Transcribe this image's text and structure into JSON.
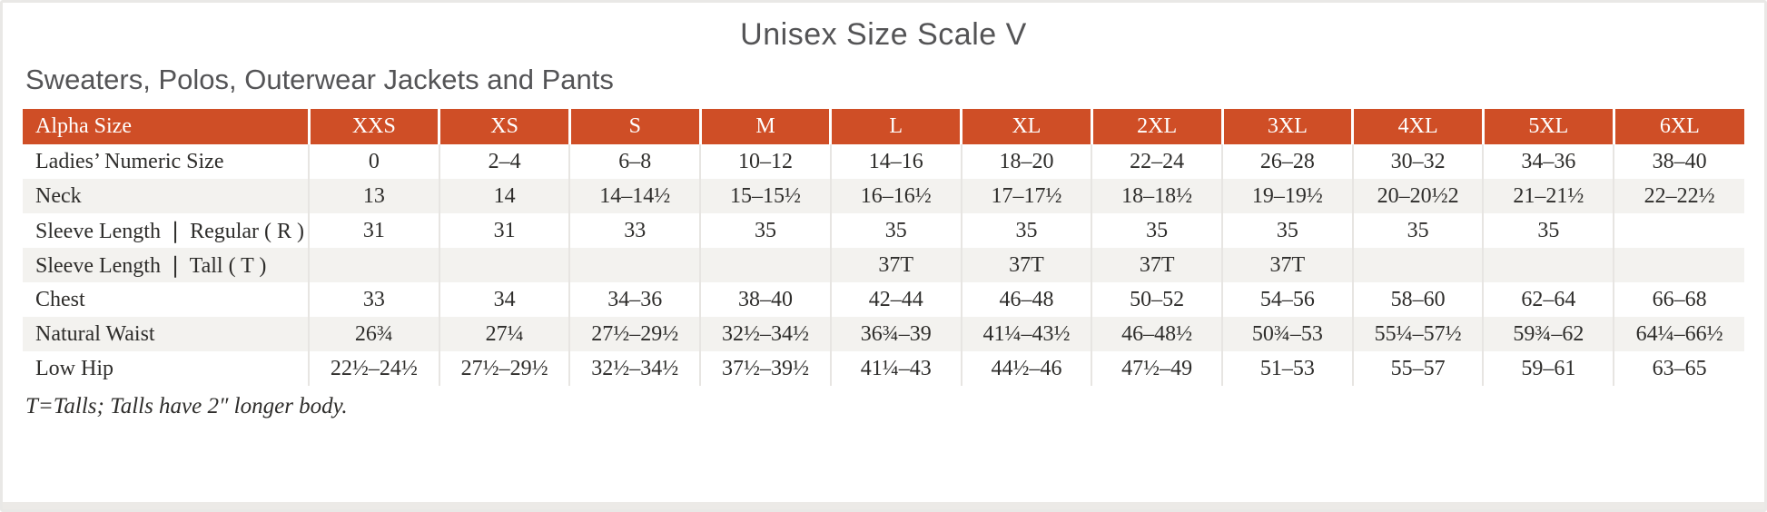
{
  "page": {
    "title": "Unisex Size Scale V",
    "subtitle": "Sweaters, Polos, Outerwear Jackets and Pants",
    "footnote": "T=Talls; Talls have 2″ longer body."
  },
  "colors": {
    "header_bg": "#cf4e26",
    "row_alt_bg": "#f3f2ef",
    "cell_border": "#e7e5e2",
    "text": "#2e2d2b",
    "heading_text": "#545456",
    "page_border": "#e9e8e6",
    "strip_bg": "#eceae7"
  },
  "chart_data": {
    "type": "table",
    "title": "Unisex Size Scale V",
    "columns": [
      "Alpha Size",
      "XXS",
      "XS",
      "S",
      "M",
      "L",
      "XL",
      "2XL",
      "3XL",
      "4XL",
      "5XL",
      "6XL"
    ],
    "rows": [
      {
        "label": "Ladies’ Numeric Size",
        "values": [
          "0",
          "2–4",
          "6–8",
          "10–12",
          "14–16",
          "18–20",
          "22–24",
          "26–28",
          "30–32",
          "34–36",
          "38–40"
        ]
      },
      {
        "label": "Neck",
        "values": [
          "13",
          "14",
          "14–14½",
          "15–15½",
          "16–16½",
          "17–17½",
          "18–18½",
          "19–19½",
          "20–20½2",
          "21–21½",
          "22–22½"
        ]
      },
      {
        "label": "Sleeve Length ❘ Regular ( R )",
        "values": [
          "31",
          "31",
          "33",
          "35",
          "35",
          "35",
          "35",
          "35",
          "35",
          "35",
          ""
        ]
      },
      {
        "label": "Sleeve Length ❘ Tall ( T )",
        "values": [
          "",
          "",
          "",
          "",
          "37T",
          "37T",
          "37T",
          "37T",
          "",
          "",
          ""
        ]
      },
      {
        "label": "Chest",
        "values": [
          "33",
          "34",
          "34–36",
          "38–40",
          "42–44",
          "46–48",
          "50–52",
          "54–56",
          "58–60",
          "62–64",
          "66–68"
        ]
      },
      {
        "label": "Natural Waist",
        "values": [
          "26¾",
          "27¼",
          "27½–29½",
          "32½–34½",
          "36¾–39",
          "41¼–43½",
          "46–48½",
          "50¾–53",
          "55¼–57½",
          "59¾–62",
          "64¼–66½"
        ]
      },
      {
        "label": "Low Hip",
        "values": [
          "22½–24½",
          "27½–29½",
          "32½–34½",
          "37½–39½",
          "41¼–43",
          "44½–46",
          "47½–49",
          "51–53",
          "55–57",
          "59–61",
          "63–65"
        ]
      }
    ]
  }
}
